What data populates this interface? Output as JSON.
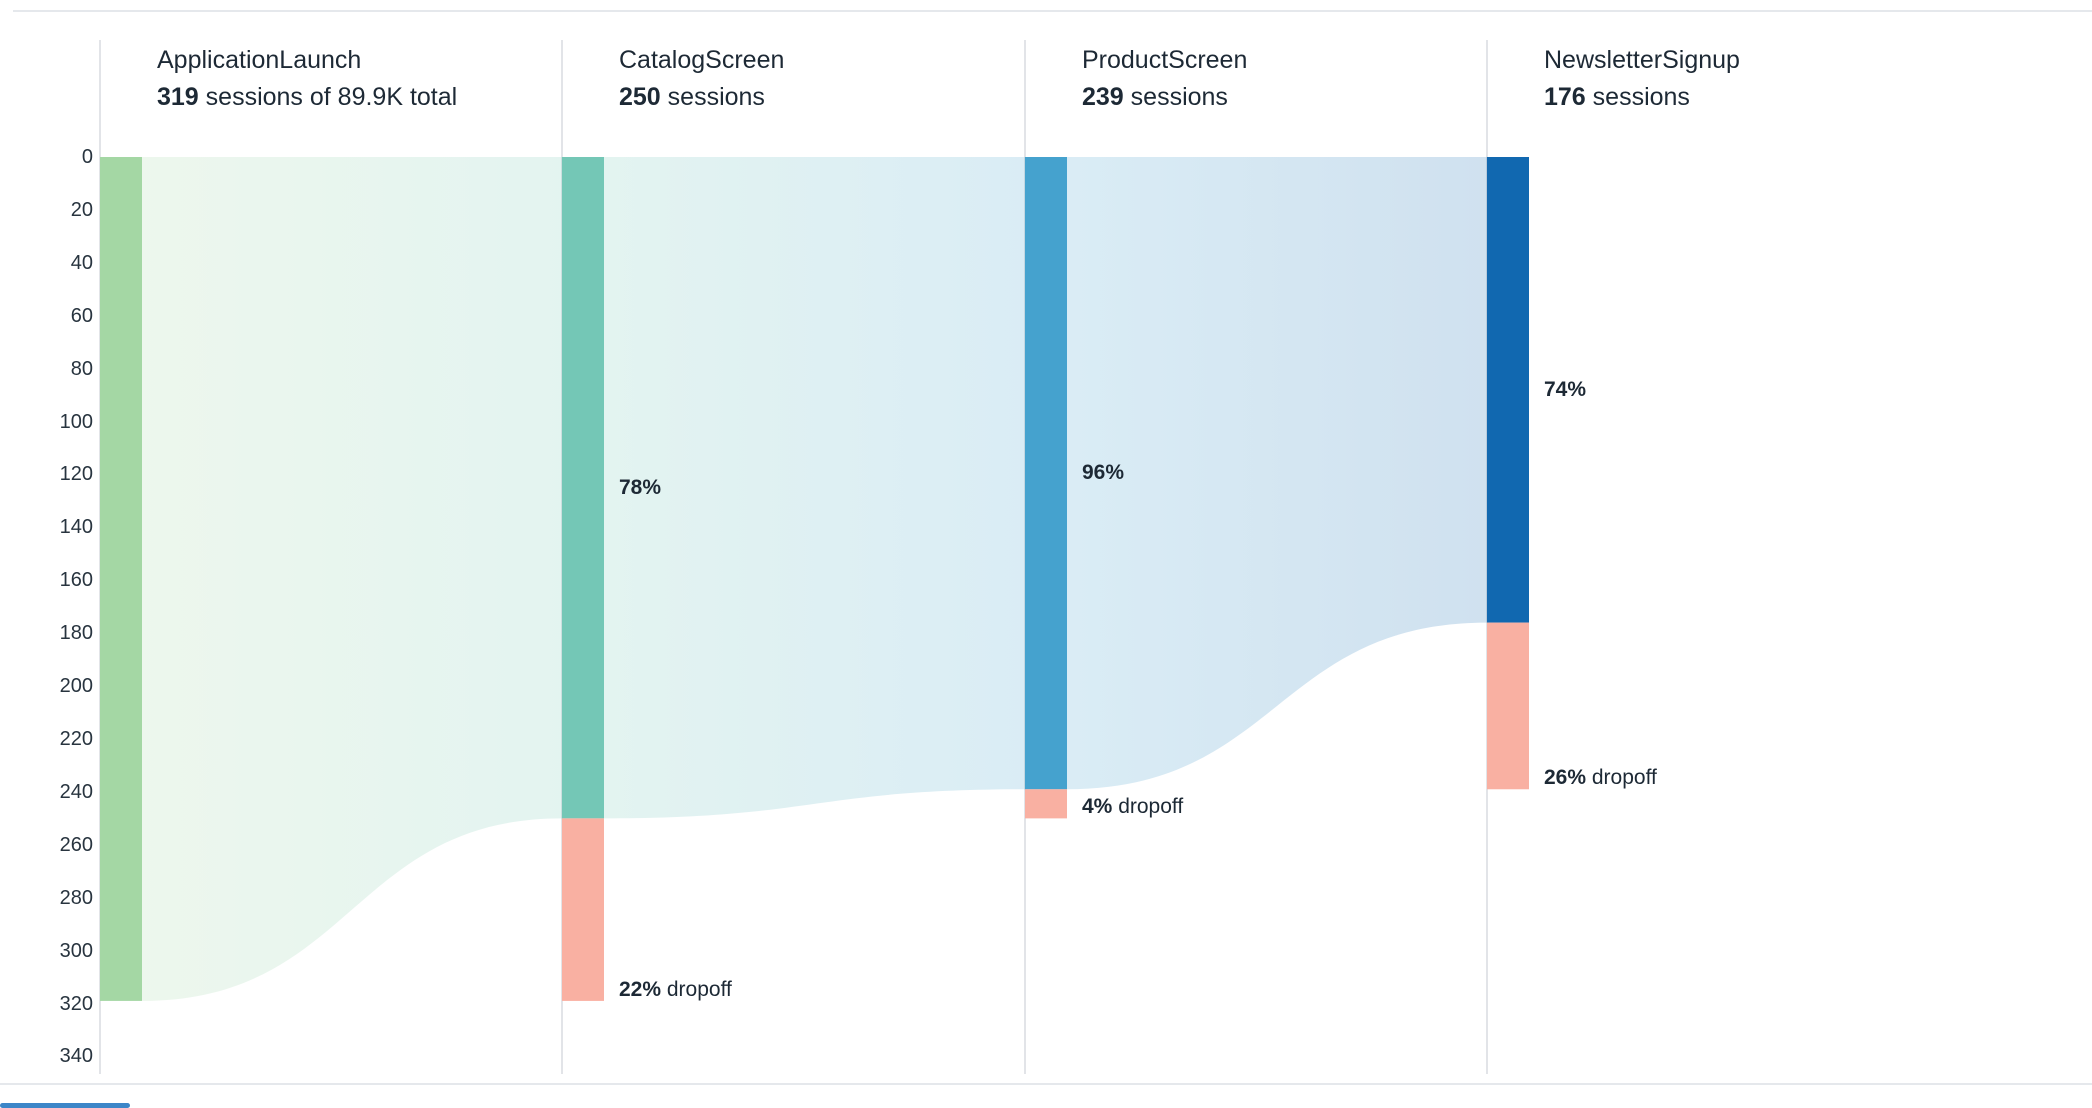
{
  "theme": {
    "background": "#ffffff",
    "text_color": "#1d2935",
    "gridline_color": "#d8dbe0",
    "divider_color": "#e5e8ec",
    "dropoff_color": "#f9b0a2",
    "scrollbar_color": "#3c86c8"
  },
  "chart_data": {
    "type": "funnel",
    "unit": "sessions",
    "total_label": "89.9K",
    "y_axis": {
      "min": 0,
      "max": 340,
      "step": 20,
      "inverted": true
    },
    "steps": [
      {
        "name": "ApplicationLaunch",
        "sessions": 319,
        "sessions_suffix": " sessions of 89.9K total",
        "color": "#a4d7a4"
      },
      {
        "name": "CatalogScreen",
        "sessions": 250,
        "sessions_suffix": " sessions",
        "conversion_rate": "78%",
        "dropoff": {
          "sessions": 69,
          "rate": "22%",
          "suffix": " dropoff"
        },
        "color": "#74c7b6"
      },
      {
        "name": "ProductScreen",
        "sessions": 239,
        "sessions_suffix": " sessions",
        "conversion_rate": "96%",
        "dropoff": {
          "sessions": 11,
          "rate": "4%",
          "suffix": " dropoff"
        },
        "color": "#45a2ce"
      },
      {
        "name": "NewsletterSignup",
        "sessions": 176,
        "sessions_suffix": " sessions",
        "conversion_rate": "74%",
        "dropoff": {
          "sessions": 63,
          "rate": "26%",
          "suffix": " dropoff"
        },
        "color": "#1168b0"
      }
    ]
  }
}
